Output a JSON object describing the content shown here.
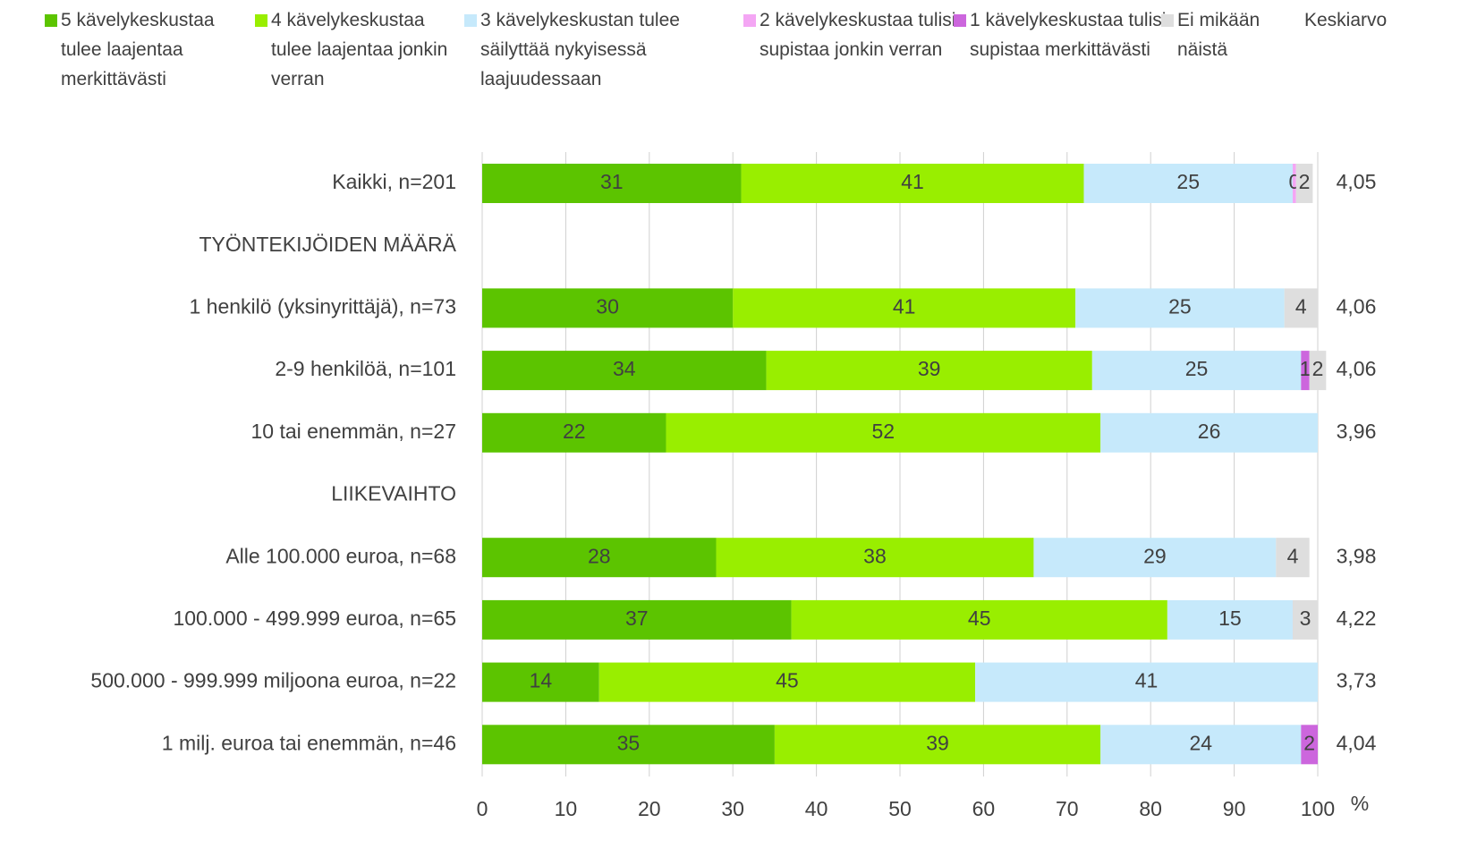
{
  "chart_data": {
    "type": "stacked_bar_horizontal",
    "categories": [
      "Kaikki, n=201",
      "TYÖNTEKIJÖIDEN MÄÄRÄ",
      "1 henkilö (yksinyrittäjä), n=73",
      "2-9 henkilöä, n=101",
      "10 tai enemmän, n=27",
      "LIIKEVAIHTO",
      "Alle 100.000 euroa, n=68",
      "100.000 - 499.999 euroa, n=65",
      "500.000 - 999.999 miljoona euroa, n=22",
      "1 milj. euroa tai enemmän, n=46"
    ],
    "series": [
      {
        "name": "5 kävelykeskustaa tulee laajentaa merkittävästi",
        "color": "#5cc400",
        "values": [
          31,
          null,
          30,
          34,
          22,
          null,
          28,
          37,
          14,
          35
        ]
      },
      {
        "name": "4 kävelykeskustaa tulee laajentaa jonkin verran",
        "color": "#99ee00",
        "values": [
          41,
          null,
          41,
          39,
          52,
          null,
          38,
          45,
          45,
          39
        ]
      },
      {
        "name": "3 kävelykeskustan tulee säilyttää nykyisessä laajuudessaan",
        "color": "#c6e9fb",
        "values": [
          25,
          null,
          25,
          25,
          26,
          null,
          29,
          15,
          41,
          24
        ]
      },
      {
        "name": "2 kävelykeskustaa tulisi supistaa jonkin verran",
        "color": "#f4a6f4",
        "values": [
          0.4,
          null,
          null,
          null,
          null,
          null,
          null,
          null,
          null,
          null
        ],
        "value_labels": [
          "0",
          null,
          null,
          null,
          null,
          null,
          null,
          null,
          null,
          null
        ]
      },
      {
        "name": "1 kävelykeskustaa tulisi supistaa merkittävästi",
        "color": "#cc66dd",
        "values": [
          null,
          null,
          null,
          1,
          null,
          null,
          null,
          null,
          null,
          2
        ]
      },
      {
        "name": "Ei mikään näistä",
        "color": "#dedede",
        "values": [
          2,
          null,
          4,
          2,
          null,
          null,
          4,
          3,
          null,
          null
        ]
      }
    ],
    "average": {
      "name": "Keskiarvo",
      "values": [
        4.05,
        null,
        4.06,
        4.06,
        3.96,
        null,
        3.98,
        4.22,
        3.73,
        4.04
      ],
      "value_labels": [
        "4,05",
        null,
        "4,06",
        "4,06",
        "3,96",
        null,
        "3,98",
        "4,22",
        "3,73",
        "4,04"
      ]
    },
    "xlim": [
      0,
      100
    ],
    "xticks": [
      0,
      10,
      20,
      30,
      40,
      50,
      60,
      70,
      80,
      90,
      100
    ],
    "x_unit": "%",
    "grid": true
  }
}
